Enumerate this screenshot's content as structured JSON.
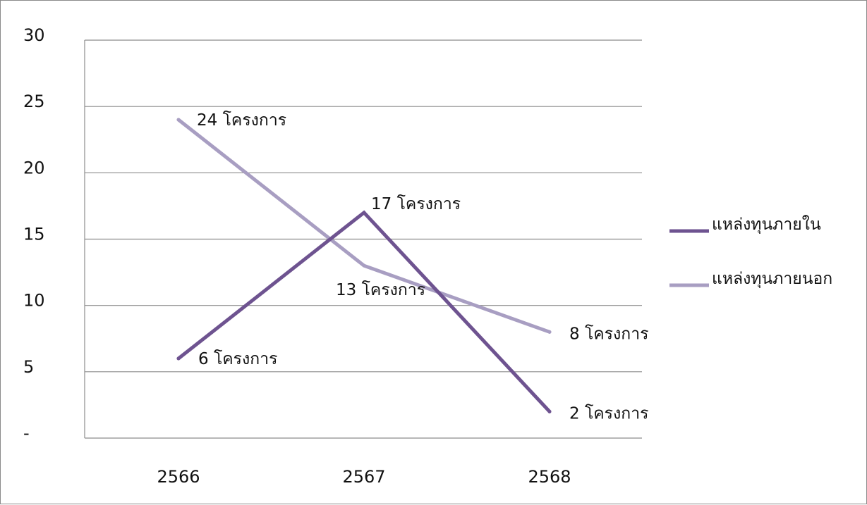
{
  "chart_data": {
    "type": "line",
    "categories": [
      "2566",
      "2567",
      "2568"
    ],
    "series": [
      {
        "name": "แหล่งทุนภายใน",
        "values": [
          6,
          17,
          2
        ],
        "labels": [
          "6 โครงการ",
          "17 โครงการ",
          "2 โครงการ"
        ],
        "color": "#6e5390"
      },
      {
        "name": "แหล่งทุนภายนอก",
        "values": [
          24,
          13,
          8
        ],
        "labels": [
          "24 โครงการ",
          "13 โครงการ",
          "8 โครงการ"
        ],
        "color": "#a89ec2"
      }
    ],
    "y_tick_labels": [
      "-",
      "5",
      "10",
      "15",
      "20",
      "25",
      "30"
    ],
    "ylim": [
      0,
      30
    ],
    "grid": true,
    "legend_position": "right"
  }
}
